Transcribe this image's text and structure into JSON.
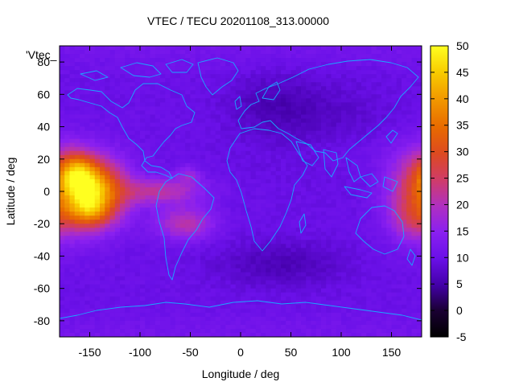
{
  "chart_data": {
    "type": "heatmap",
    "title": "VTEC / TECU 20201108_313.00000",
    "xlabel": "Longitude / deg",
    "ylabel": "Latitude / deg",
    "key_label": "'Vtec_",
    "xlim": [
      -180,
      180
    ],
    "ylim": [
      -90,
      90
    ],
    "x_ticks": [
      -150,
      -100,
      -50,
      0,
      50,
      100,
      150
    ],
    "y_ticks": [
      -80,
      -60,
      -40,
      -20,
      0,
      20,
      40,
      60,
      80
    ],
    "colorbar": {
      "range": [
        -5,
        50
      ],
      "ticks": [
        -5,
        0,
        5,
        10,
        15,
        20,
        25,
        30,
        35,
        40,
        45,
        50
      ]
    },
    "grid_step": {
      "lon": 5,
      "lat": 2.5
    },
    "background_value": 10,
    "features": [
      {
        "lon": -145,
        "lat": 0,
        "sigma_lon": 22,
        "sigma_lat": 14,
        "value": 28
      },
      {
        "lon": -160,
        "lat": 8,
        "sigma_lon": 14,
        "sigma_lat": 8,
        "value": 12
      },
      {
        "lon": -150,
        "lat": -12,
        "sigma_lon": 14,
        "sigma_lat": 7,
        "value": 12
      },
      {
        "lon": -165,
        "lat": 15,
        "sigma_lon": 12,
        "sigma_lat": 8,
        "value": 8
      },
      {
        "lon": -80,
        "lat": 0,
        "sigma_lon": 30,
        "sigma_lat": 6,
        "value": 11
      },
      {
        "lon": -55,
        "lat": -20,
        "sigma_lon": 20,
        "sigma_lat": 7,
        "value": 11
      },
      {
        "lon": -52,
        "lat": 10,
        "sigma_lon": 8,
        "sigma_lat": 4,
        "value": 6
      },
      {
        "lon": 178,
        "lat": 0,
        "sigma_lon": 22,
        "sigma_lat": 18,
        "value": 16
      },
      {
        "lon": 170,
        "lat": -18,
        "sigma_lon": 14,
        "sigma_lat": 8,
        "value": 6
      },
      {
        "lon": 40,
        "lat": -45,
        "sigma_lon": 45,
        "sigma_lat": 10,
        "value": -4
      },
      {
        "lon": 80,
        "lat": 40,
        "sigma_lon": 50,
        "sigma_lat": 20,
        "value": -3
      },
      {
        "lon": 30,
        "lat": 55,
        "sigma_lon": 30,
        "sigma_lat": 12,
        "value": -3
      },
      {
        "lon": 100,
        "lat": 25,
        "sigma_lon": 40,
        "sigma_lat": 10,
        "value": 2
      }
    ],
    "coastlines_drawn": true
  }
}
